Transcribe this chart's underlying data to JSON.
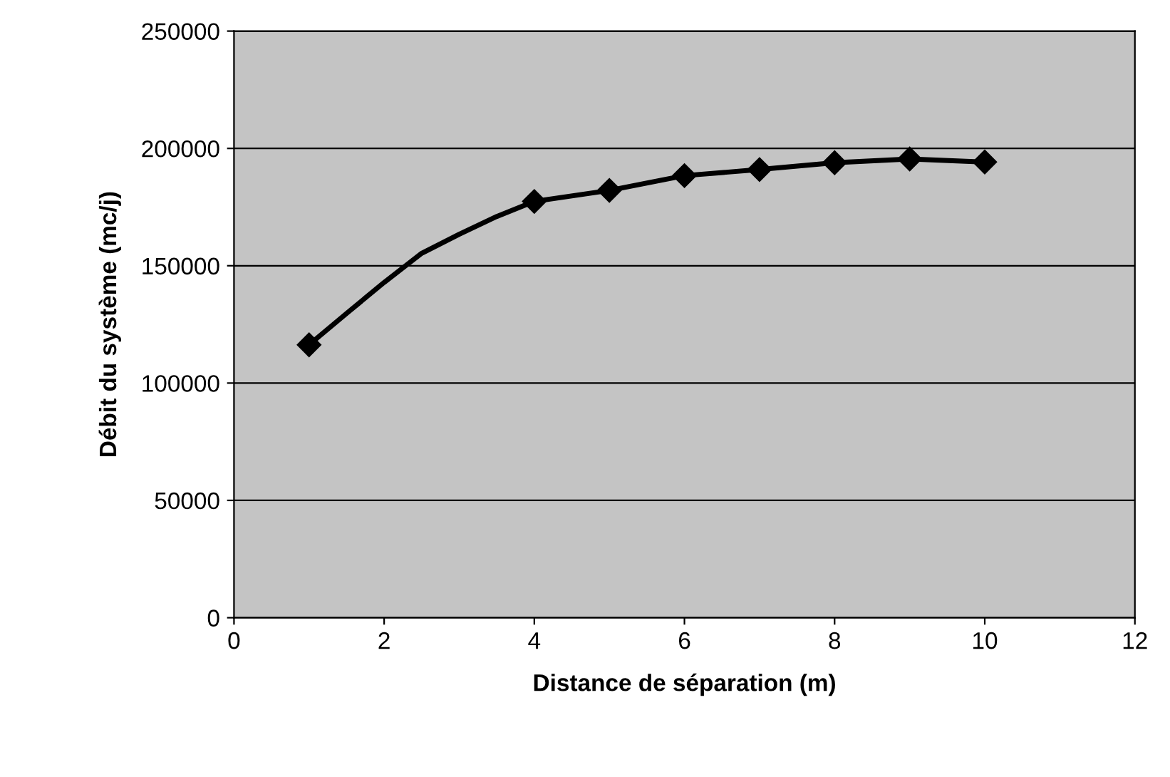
{
  "chart_data": {
    "type": "scatter",
    "xlabel": "Distance de séparation (m)",
    "ylabel": "Débit du système (mc/j)",
    "x": [
      1,
      4,
      5,
      6,
      7,
      8,
      9,
      10
    ],
    "series": [
      {
        "type": "line",
        "marker": "none",
        "color": "#000000",
        "x": [
          1,
          1.5,
          2,
          2.5,
          3,
          3.5,
          4,
          5,
          6,
          7,
          8,
          9,
          10
        ],
        "values": [
          116300,
          129700,
          142900,
          155300,
          163400,
          171000,
          177400,
          182100,
          188400,
          191000,
          193900,
          195500,
          194200
        ]
      },
      {
        "color": "#000000",
        "values": [
          116300,
          177400,
          182100,
          188400,
          191000,
          193900,
          195500,
          194200
        ]
      }
    ],
    "xlim": [
      0,
      12
    ],
    "xticks": [
      0,
      2,
      4,
      6,
      8,
      10,
      12
    ],
    "ylim": [
      0,
      250000
    ],
    "yticks": [
      0,
      50000,
      100000,
      150000,
      200000,
      250000
    ],
    "grid": "y",
    "marker": "diamond",
    "line_style": "solid"
  }
}
